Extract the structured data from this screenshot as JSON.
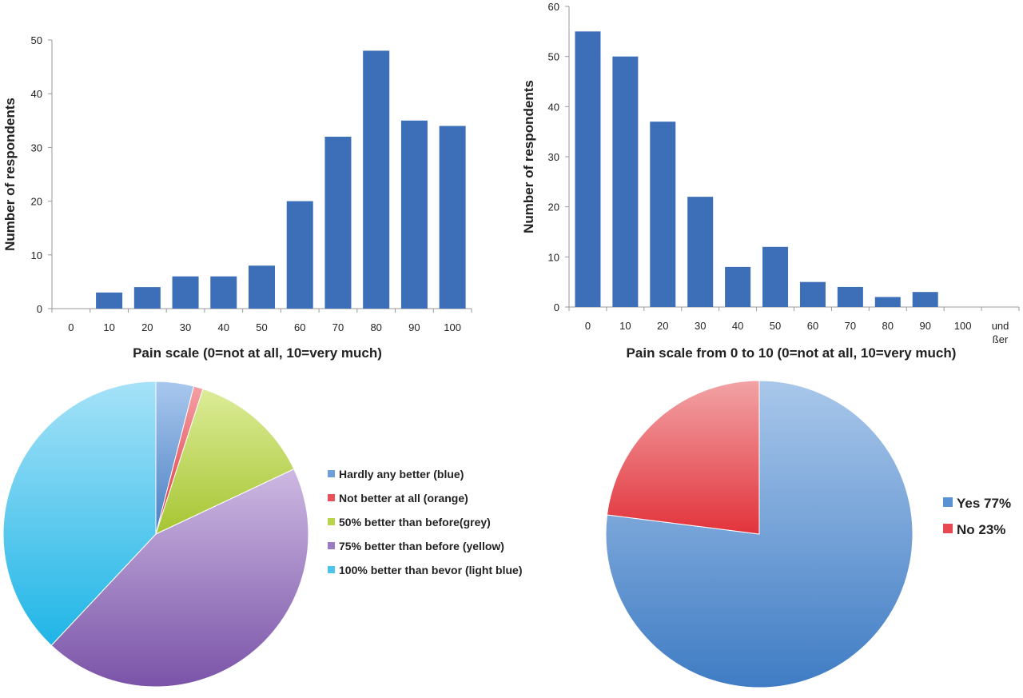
{
  "chart_data": [
    {
      "type": "bar",
      "title": "",
      "xlabel": "Pain scale  (0=not at all, 10=very much)",
      "ylabel": "Number of respondents",
      "categories": [
        "0",
        "10",
        "20",
        "30",
        "40",
        "50",
        "60",
        "70",
        "80",
        "90",
        "100"
      ],
      "values": [
        0,
        3,
        4,
        6,
        6,
        8,
        20,
        32,
        48,
        35,
        34
      ],
      "ylim": [
        0,
        50
      ],
      "yticks": [
        "0",
        "10",
        "20",
        "30",
        "40",
        "50"
      ],
      "color": "#3c6fb7",
      "grid": false
    },
    {
      "type": "bar",
      "title": "",
      "xlabel": "Pain scale from 0 to 10 (0=not at all, 10=very much)",
      "ylabel": "Number of respondents",
      "categories": [
        "0",
        "10",
        "20",
        "30",
        "40",
        "50",
        "60",
        "70",
        "80",
        "90",
        "100",
        "und ößer"
      ],
      "category_lines": [
        [
          "0"
        ],
        [
          "10"
        ],
        [
          "20"
        ],
        [
          "30"
        ],
        [
          "40"
        ],
        [
          "50"
        ],
        [
          "60"
        ],
        [
          "70"
        ],
        [
          "80"
        ],
        [
          "90"
        ],
        [
          "100"
        ],
        [
          "und",
          "ßer"
        ]
      ],
      "values": [
        55,
        50,
        37,
        22,
        8,
        12,
        5,
        4,
        2,
        3,
        0,
        0
      ],
      "ylim": [
        0,
        60
      ],
      "yticks": [
        "0",
        "10",
        "20",
        "30",
        "40",
        "50",
        "60"
      ],
      "color": "#3c6fb7",
      "grid": false
    },
    {
      "type": "pie",
      "title": "",
      "legend_position": "right",
      "labels": [
        "Hardly any better (blue)",
        "Not better at all (orange)",
        "50% better than before(grey)",
        "75% better than before (yellow)",
        "100% better than bevor (light blue)"
      ],
      "values": [
        4,
        1,
        13,
        44,
        38
      ],
      "colors": [
        "#6f9fd8",
        "#e8505a",
        "#b9d44a",
        "#9b7cc0",
        "#4cc4ec"
      ]
    },
    {
      "type": "pie",
      "title": "",
      "legend_position": "right",
      "labels": [
        "Yes  77%",
        "No  23%"
      ],
      "values": [
        77,
        23
      ],
      "colors": [
        "#5b92d2",
        "#e8484f"
      ]
    }
  ]
}
